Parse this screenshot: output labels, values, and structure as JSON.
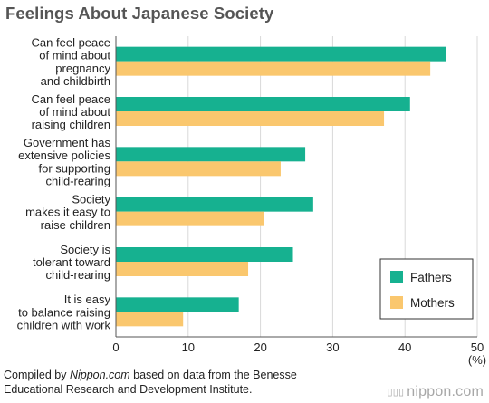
{
  "title": "Feelings About Japanese Society",
  "footer": {
    "prefix": "Compiled by ",
    "site": "Nippon.com",
    "suffix": " based on data from the Benesse",
    "line2": "Educational Research and Development Institute."
  },
  "logo": {
    "mark": "▯▯▯",
    "text": "nippon.com"
  },
  "colors": {
    "fathers": "#16b190",
    "mothers": "#fac76e",
    "grid": "#d9d9d9",
    "axis": "#555555"
  },
  "chart_data": {
    "type": "bar",
    "orientation": "horizontal",
    "title": "Feelings About Japanese Society",
    "xlabel": "(%)",
    "xlim": [
      0,
      50
    ],
    "xticks": [
      "0",
      "10",
      "20",
      "30",
      "40",
      "50"
    ],
    "xtick_values": [
      0,
      10,
      20,
      30,
      40,
      50
    ],
    "grid": "vertical",
    "legend_position": "bottom-right",
    "categories": [
      [
        "Can feel peace",
        "of mind about",
        "pregnancy",
        "and childbirth"
      ],
      [
        "Can feel peace",
        "of mind about",
        "raising children"
      ],
      [
        "Government has",
        "extensive policies",
        "for supporting",
        "child-rearing"
      ],
      [
        "Society",
        "makes it easy to",
        "raise children"
      ],
      [
        "Society is",
        "tolerant toward",
        "child-rearing"
      ],
      [
        "It is easy",
        "to balance raising",
        "children with work"
      ]
    ],
    "series": [
      {
        "name": "Fathers",
        "color": "#16b190",
        "values": [
          45.7,
          40.7,
          26.2,
          27.3,
          24.5,
          17.0
        ]
      },
      {
        "name": "Mothers",
        "color": "#fac76e",
        "values": [
          43.5,
          37.1,
          22.8,
          20.5,
          18.3,
          9.3
        ]
      }
    ]
  }
}
